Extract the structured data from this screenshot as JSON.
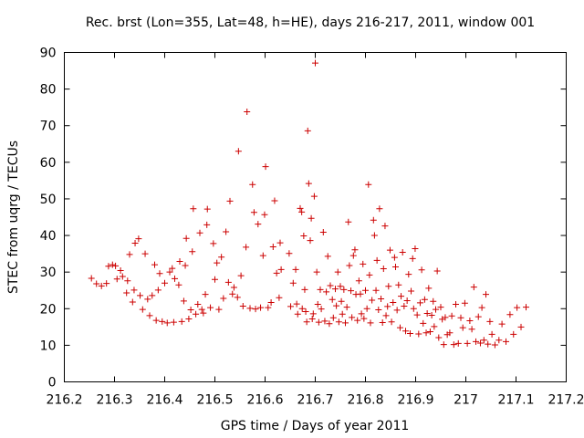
{
  "chart_data": {
    "type": "scatter",
    "title": "Rec. brst (Lon=355, Lat=48, h=HE), days 216-217, 2011, window 001",
    "xlabel": "GPS time / Days of year 2011",
    "ylabel": "STEC from uqrg / TECUs",
    "xlim": [
      216.2,
      217.2
    ],
    "ylim": [
      0,
      90
    ],
    "xticks": [
      "216.2",
      "216.3",
      "216.4",
      "216.5",
      "216.6",
      "216.7",
      "216.8",
      "216.9",
      "217",
      "217.1",
      "217.2"
    ],
    "yticks": [
      "0",
      "10",
      "20",
      "30",
      "40",
      "50",
      "60",
      "70",
      "80",
      "90"
    ],
    "grid": false,
    "marker": "+",
    "color": "#cc0000",
    "points": [
      [
        216.254,
        28.3
      ],
      [
        216.264,
        26.8
      ],
      [
        216.274,
        26.2
      ],
      [
        216.284,
        26.9
      ],
      [
        216.288,
        31.6
      ],
      [
        216.296,
        32.0
      ],
      [
        216.302,
        31.7
      ],
      [
        216.305,
        28.1
      ],
      [
        216.312,
        30.4
      ],
      [
        216.316,
        28.8
      ],
      [
        216.324,
        24.3
      ],
      [
        216.326,
        27.6
      ],
      [
        216.33,
        34.8
      ],
      [
        216.336,
        21.8
      ],
      [
        216.339,
        25.1
      ],
      [
        216.341,
        37.9
      ],
      [
        216.348,
        39.1
      ],
      [
        216.351,
        23.6
      ],
      [
        216.356,
        19.8
      ],
      [
        216.361,
        35.0
      ],
      [
        216.366,
        22.6
      ],
      [
        216.37,
        18.1
      ],
      [
        216.375,
        23.6
      ],
      [
        216.38,
        32.0
      ],
      [
        216.383,
        16.8
      ],
      [
        216.387,
        25.1
      ],
      [
        216.39,
        29.6
      ],
      [
        216.395,
        16.5
      ],
      [
        216.4,
        27.0
      ],
      [
        216.405,
        16.1
      ],
      [
        216.41,
        30.0
      ],
      [
        216.415,
        31.0
      ],
      [
        216.418,
        16.3
      ],
      [
        216.42,
        28.2
      ],
      [
        216.428,
        26.5
      ],
      [
        216.43,
        32.9
      ],
      [
        216.434,
        16.5
      ],
      [
        216.438,
        22.1
      ],
      [
        216.441,
        31.8
      ],
      [
        216.443,
        39.2
      ],
      [
        216.448,
        17.2
      ],
      [
        216.452,
        19.7
      ],
      [
        216.455,
        35.6
      ],
      [
        216.457,
        47.3
      ],
      [
        216.462,
        18.5
      ],
      [
        216.466,
        21.2
      ],
      [
        216.47,
        40.7
      ],
      [
        216.474,
        19.8
      ],
      [
        216.477,
        18.8
      ],
      [
        216.481,
        23.9
      ],
      [
        216.484,
        42.9
      ],
      [
        216.485,
        47.2
      ],
      [
        216.491,
        20.3
      ],
      [
        216.497,
        37.8
      ],
      [
        216.5,
        28.0
      ],
      [
        216.504,
        32.5
      ],
      [
        216.508,
        19.8
      ],
      [
        216.513,
        34.1
      ],
      [
        216.517,
        22.8
      ],
      [
        216.522,
        41.0
      ],
      [
        216.527,
        27.2
      ],
      [
        216.53,
        49.4
      ],
      [
        216.535,
        24.0
      ],
      [
        216.538,
        25.8
      ],
      [
        216.545,
        23.1
      ],
      [
        216.547,
        63.0
      ],
      [
        216.552,
        29.0
      ],
      [
        216.556,
        20.7
      ],
      [
        216.562,
        36.8
      ],
      [
        216.564,
        73.8
      ],
      [
        216.57,
        20.1
      ],
      [
        216.575,
        53.9
      ],
      [
        216.578,
        46.3
      ],
      [
        216.581,
        19.9
      ],
      [
        216.586,
        43.1
      ],
      [
        216.591,
        20.3
      ],
      [
        216.596,
        34.5
      ],
      [
        216.599,
        45.7
      ],
      [
        216.601,
        58.8
      ],
      [
        216.606,
        20.3
      ],
      [
        216.612,
        21.7
      ],
      [
        216.616,
        36.9
      ],
      [
        216.619,
        49.5
      ],
      [
        216.623,
        29.7
      ],
      [
        216.628,
        23.0
      ],
      [
        216.63,
        38.0
      ],
      [
        216.632,
        30.7
      ],
      [
        216.648,
        35.1
      ],
      [
        216.651,
        20.6
      ],
      [
        216.656,
        27.0
      ],
      [
        216.661,
        30.7
      ],
      [
        216.663,
        21.3
      ],
      [
        216.665,
        18.5
      ],
      [
        216.67,
        47.4
      ],
      [
        216.673,
        46.4
      ],
      [
        216.674,
        20.0
      ],
      [
        216.677,
        39.9
      ],
      [
        216.679,
        25.2
      ],
      [
        216.681,
        19.2
      ],
      [
        216.683,
        16.4
      ],
      [
        216.685,
        68.6
      ],
      [
        216.687,
        54.2
      ],
      [
        216.69,
        38.6
      ],
      [
        216.692,
        44.7
      ],
      [
        216.694,
        17.2
      ],
      [
        216.696,
        18.6
      ],
      [
        216.698,
        50.7
      ],
      [
        216.7,
        87.1
      ],
      [
        216.703,
        30.0
      ],
      [
        216.705,
        21.2
      ],
      [
        216.707,
        16.3
      ],
      [
        216.71,
        25.2
      ],
      [
        216.712,
        19.9
      ],
      [
        216.716,
        40.9
      ],
      [
        216.719,
        16.6
      ],
      [
        216.722,
        24.6
      ],
      [
        216.725,
        34.3
      ],
      [
        216.728,
        15.9
      ],
      [
        216.73,
        26.3
      ],
      [
        216.734,
        22.5
      ],
      [
        216.736,
        17.5
      ],
      [
        216.74,
        25.4
      ],
      [
        216.742,
        20.8
      ],
      [
        216.745,
        30.0
      ],
      [
        216.747,
        16.4
      ],
      [
        216.75,
        26.1
      ],
      [
        216.752,
        22.0
      ],
      [
        216.754,
        18.5
      ],
      [
        216.757,
        25.2
      ],
      [
        216.76,
        16.1
      ],
      [
        216.763,
        20.4
      ],
      [
        216.766,
        43.7
      ],
      [
        216.768,
        31.8
      ],
      [
        216.771,
        24.9
      ],
      [
        216.773,
        17.6
      ],
      [
        216.776,
        34.5
      ],
      [
        216.779,
        36.1
      ],
      [
        216.781,
        23.9
      ],
      [
        216.784,
        16.8
      ],
      [
        216.787,
        27.6
      ],
      [
        216.79,
        24.0
      ],
      [
        216.792,
        18.6
      ],
      [
        216.795,
        32.2
      ],
      [
        216.797,
        17.3
      ],
      [
        216.8,
        25.0
      ],
      [
        216.803,
        20.0
      ],
      [
        216.806,
        53.9
      ],
      [
        216.808,
        29.2
      ],
      [
        216.81,
        16.1
      ],
      [
        216.813,
        22.3
      ],
      [
        216.816,
        44.2
      ],
      [
        216.818,
        40.0
      ],
      [
        216.821,
        25.0
      ],
      [
        216.823,
        33.2
      ],
      [
        216.826,
        19.7
      ],
      [
        216.828,
        47.3
      ],
      [
        216.831,
        22.7
      ],
      [
        216.834,
        16.2
      ],
      [
        216.836,
        30.9
      ],
      [
        216.839,
        42.6
      ],
      [
        216.841,
        18.1
      ],
      [
        216.844,
        20.6
      ],
      [
        216.846,
        26.1
      ],
      [
        216.849,
        36.0
      ],
      [
        216.852,
        16.4
      ],
      [
        216.855,
        21.7
      ],
      [
        216.858,
        34.0
      ],
      [
        216.86,
        31.4
      ],
      [
        216.863,
        19.6
      ],
      [
        216.866,
        26.5
      ],
      [
        216.869,
        14.8
      ],
      [
        216.871,
        23.4
      ],
      [
        216.874,
        35.4
      ],
      [
        216.877,
        20.7
      ],
      [
        216.88,
        13.9
      ],
      [
        216.883,
        22.2
      ],
      [
        216.886,
        29.4
      ],
      [
        216.889,
        13.2
      ],
      [
        216.891,
        24.8
      ],
      [
        216.894,
        33.7
      ],
      [
        216.896,
        20.0
      ],
      [
        216.899,
        36.4
      ],
      [
        216.903,
        18.3
      ],
      [
        216.906,
        13.1
      ],
      [
        216.909,
        21.6
      ],
      [
        216.912,
        30.6
      ],
      [
        216.915,
        16.0
      ],
      [
        216.918,
        22.5
      ],
      [
        216.921,
        13.4
      ],
      [
        216.923,
        18.7
      ],
      [
        216.926,
        25.6
      ],
      [
        216.929,
        13.7
      ],
      [
        216.932,
        18.2
      ],
      [
        216.935,
        22.0
      ],
      [
        216.937,
        15.1
      ],
      [
        216.94,
        19.8
      ],
      [
        216.943,
        30.3
      ],
      [
        216.946,
        12.1
      ],
      [
        216.95,
        20.4
      ],
      [
        216.953,
        17.1
      ],
      [
        216.956,
        10.2
      ],
      [
        216.959,
        17.6
      ],
      [
        216.963,
        12.9
      ],
      [
        216.968,
        13.4
      ],
      [
        216.972,
        18.0
      ],
      [
        216.976,
        10.2
      ],
      [
        216.98,
        21.2
      ],
      [
        216.985,
        10.5
      ],
      [
        216.99,
        17.5
      ],
      [
        216.994,
        14.8
      ],
      [
        216.998,
        21.5
      ],
      [
        217.003,
        10.5
      ],
      [
        217.008,
        16.7
      ],
      [
        217.012,
        14.4
      ],
      [
        217.016,
        25.9
      ],
      [
        217.02,
        11.0
      ],
      [
        217.025,
        17.8
      ],
      [
        217.029,
        10.6
      ],
      [
        217.032,
        20.3
      ],
      [
        217.036,
        11.4
      ],
      [
        217.04,
        23.9
      ],
      [
        217.044,
        10.3
      ],
      [
        217.048,
        16.5
      ],
      [
        217.052,
        13.0
      ],
      [
        217.058,
        10.1
      ],
      [
        217.066,
        11.4
      ],
      [
        217.072,
        15.8
      ],
      [
        217.08,
        11.0
      ],
      [
        217.088,
        18.4
      ],
      [
        217.095,
        13.0
      ],
      [
        217.102,
        20.3
      ],
      [
        217.11,
        15.0
      ],
      [
        217.12,
        20.4
      ]
    ]
  }
}
